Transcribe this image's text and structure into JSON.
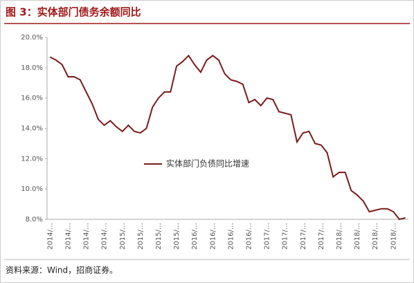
{
  "title": "图 3：实体部门债务余额同比",
  "source": "资料来源：Wind，招商证券。",
  "chart_data": {
    "type": "line",
    "categories": [
      "2014/…",
      null,
      null,
      "2014/…",
      null,
      null,
      "2014/…",
      null,
      null,
      "2014/…",
      null,
      null,
      "2015/…",
      null,
      null,
      "2015/…",
      null,
      null,
      "2015/…",
      null,
      null,
      "2015/…",
      null,
      null,
      "2016/…",
      null,
      null,
      "2016/…",
      null,
      null,
      "2016/…",
      null,
      null,
      "2016/…",
      null,
      null,
      "2017/…",
      null,
      null,
      "2017/…",
      null,
      null,
      "2017/…",
      null,
      null,
      "2017/…",
      null,
      null,
      "2018/…",
      null,
      null,
      "2018/…",
      null,
      null,
      "2018/…",
      null,
      null,
      "2018/…",
      null,
      null
    ],
    "series": [
      {
        "name": "实体部门负债同比增速",
        "color": "#7b1a1a",
        "values": [
          18.7,
          18.5,
          18.2,
          17.4,
          17.4,
          17.2,
          16.4,
          15.6,
          14.6,
          14.2,
          14.5,
          14.1,
          13.8,
          14.2,
          13.8,
          13.7,
          14.0,
          15.4,
          16.0,
          16.4,
          16.4,
          18.1,
          18.4,
          18.8,
          18.2,
          17.7,
          18.5,
          18.8,
          18.5,
          17.6,
          17.2,
          17.1,
          16.9,
          15.7,
          15.9,
          15.5,
          16.0,
          15.9,
          15.1,
          15.0,
          14.9,
          13.1,
          13.7,
          13.8,
          13.0,
          12.9,
          12.4,
          10.8,
          11.1,
          11.1,
          9.9,
          9.6,
          9.2,
          8.5,
          8.6,
          8.7,
          8.7,
          8.5,
          8.0,
          8.1
        ]
      }
    ],
    "ylim": [
      8,
      20
    ],
    "yticks": [
      {
        "value": 8,
        "label": "8.0%"
      },
      {
        "value": 10,
        "label": "10.0%"
      },
      {
        "value": 12,
        "label": "12.0%"
      },
      {
        "value": 14,
        "label": "14.0%"
      },
      {
        "value": 16,
        "label": "16.0%"
      },
      {
        "value": 18,
        "label": "18.0%"
      },
      {
        "value": 20,
        "label": "20.0%"
      }
    ],
    "grid": false,
    "legend": "center"
  }
}
